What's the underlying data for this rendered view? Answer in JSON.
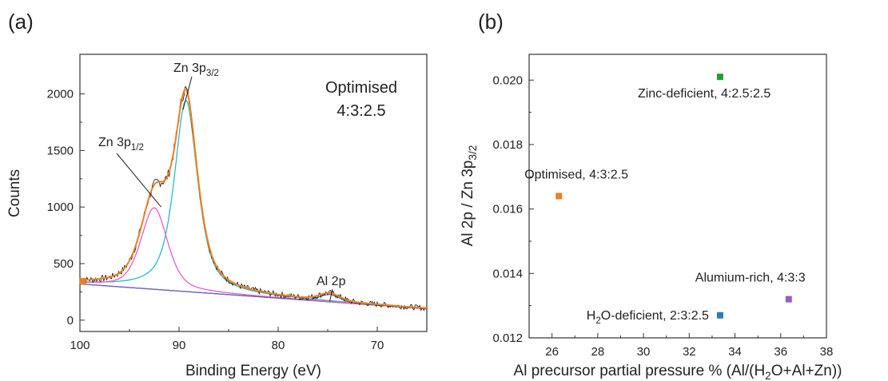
{
  "chart_data": [
    {
      "panel": "(a)",
      "type": "line",
      "xlabel": "Binding Energy (eV)",
      "ylabel": "Counts",
      "xlim": [
        100,
        65
      ],
      "ylim": [
        -100,
        2350
      ],
      "x_ticks": [
        100,
        90,
        80,
        70
      ],
      "y_ticks": [
        0,
        500,
        1000,
        1500,
        2000
      ],
      "annotation_title": "Optimised",
      "annotation_ratio": "4:3:2.5",
      "peaks": [
        {
          "label": "Zn 3p",
          "sub": "3/2",
          "position_ev": 89.3,
          "intensity": 1900,
          "arrow_to": [
            89.6,
            1860
          ]
        },
        {
          "label": "Zn 3p",
          "sub": "1/2",
          "position_ev": 92.5,
          "intensity": 1300,
          "arrow_to": [
            91.8,
            1000
          ]
        },
        {
          "label": "Al 2p",
          "sub": "",
          "position_ev": 74.8,
          "intensity": 170,
          "arrow_to": [
            74.8,
            165
          ]
        }
      ],
      "series": [
        {
          "role": "raw data",
          "color": "#111111",
          "components": {
            "background": [
              [
                100,
                320
              ],
              [
                65,
                100
              ]
            ],
            "peaks": [
              {
                "center": 89.3,
                "height": 1690,
                "width": 1.4,
                "eta": 0.7
              },
              {
                "center": 92.5,
                "height": 720,
                "width": 1.6,
                "eta": 0.5
              },
              {
                "center": 74.8,
                "height": 65,
                "width": 1.2,
                "eta": 0.3
              }
            ]
          },
          "noise": 22
        },
        {
          "role": "envelope fit",
          "color": "#f07f1e"
        },
        {
          "role": "Zn 3p3/2 component",
          "color": "#2ab9cf",
          "center": 89.3,
          "height": 1690,
          "width": 1.4,
          "eta": 0.7
        },
        {
          "role": "Zn 3p1/2 component",
          "color": "#e35fc8",
          "center": 92.5,
          "height": 720,
          "width": 1.6,
          "eta": 0.5
        },
        {
          "role": "Al 2p component",
          "color": "#6a64c8",
          "center": 74.8,
          "height": 65,
          "width": 1.2,
          "eta": 0.3
        },
        {
          "role": "background",
          "color": "#8a5a44",
          "points": [
            [
              100,
              320
            ],
            [
              65,
              100
            ]
          ]
        }
      ]
    },
    {
      "panel": "(b)",
      "type": "scatter",
      "xlabel": "Al precursor partial pressure % (Al/(H2O+Al+Zn))",
      "xlabel_parts": {
        "before": "Al precursor partial pressure % (Al/(H",
        "sub": "2",
        "after": "O+Al+Zn))"
      },
      "ylabel_parts": {
        "before": "Al 2p / Zn 3p",
        "sub": "3/2"
      },
      "xlim": [
        25,
        38
      ],
      "ylim": [
        0.012,
        0.0208
      ],
      "x_ticks": [
        "26",
        "28",
        "30",
        "32",
        "34",
        "36",
        "38"
      ],
      "y_ticks": [
        "0.012",
        "0.014",
        "0.016",
        "0.018",
        "0.020"
      ],
      "points": [
        {
          "x": 26.3,
          "y": 0.0164,
          "color": "#f07f1e",
          "label": "Optimised, 4:3:2.5",
          "label_pos": "above"
        },
        {
          "x": 33.35,
          "y": 0.0201,
          "color": "#1fa032",
          "label": "Zinc-deficient, 4:2.5:2.5",
          "label_pos": "below"
        },
        {
          "x": 33.35,
          "y": 0.0127,
          "color": "#2b7bba",
          "label_parts": {
            "before": "H",
            "sub": "2",
            "after": "O-deficient, 2:3:2.5"
          },
          "label_pos": "left"
        },
        {
          "x": 36.35,
          "y": 0.0132,
          "color": "#9b59c9",
          "label": "Alumium-rich, 4:3:3",
          "label_pos": "above-left"
        }
      ]
    }
  ]
}
